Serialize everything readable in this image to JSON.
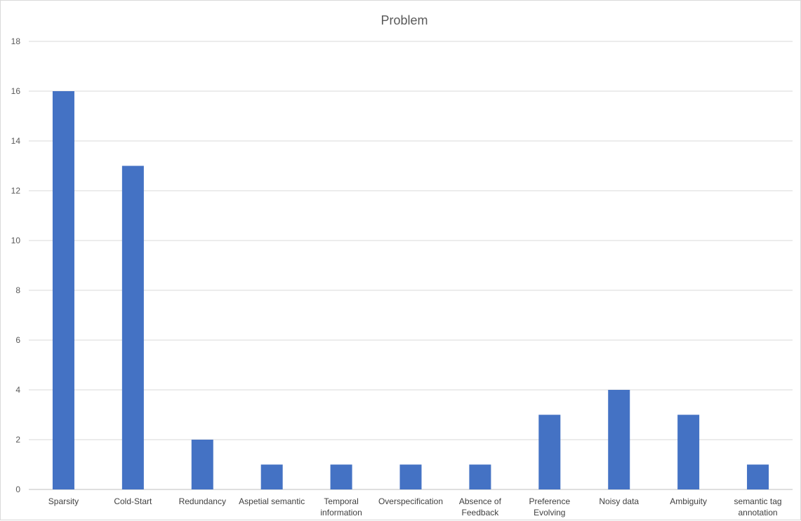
{
  "chart_data": {
    "type": "bar",
    "title": "Problem",
    "xlabel": "",
    "ylabel": "",
    "ylim": [
      0,
      18
    ],
    "yticks": [
      "0",
      "2",
      "4",
      "6",
      "8",
      "10",
      "12",
      "14",
      "16",
      "18"
    ],
    "grid": true,
    "legend": "none",
    "bar_color": "#4472c4",
    "categories": [
      [
        "Sparsity"
      ],
      [
        "Cold-Start"
      ],
      [
        "Redundancy"
      ],
      [
        "Aspetial semantic"
      ],
      [
        "Temporal",
        "information"
      ],
      [
        "Overspecification"
      ],
      [
        "Absence of",
        "Feedback"
      ],
      [
        "Preference",
        "Evolving"
      ],
      [
        "Noisy data"
      ],
      [
        "Ambiguity"
      ],
      [
        "semantic tag",
        "annotation"
      ]
    ],
    "values": [
      16,
      13,
      2,
      1,
      1,
      1,
      1,
      3,
      4,
      3,
      1
    ]
  }
}
